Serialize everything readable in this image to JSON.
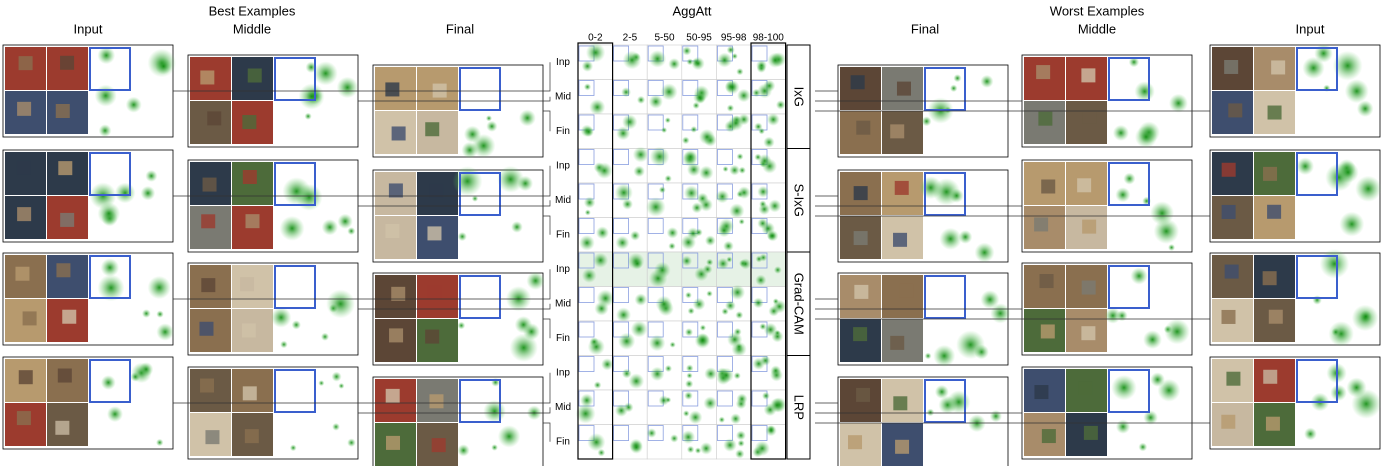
{
  "best": {
    "input": "Input",
    "group": "Best Examples",
    "middle": "Middle",
    "final": "Final"
  },
  "aggatt": {
    "title": "AggAtt",
    "bins": [
      "0-2",
      "2-5",
      "5-50",
      "50-95",
      "95-98",
      "98-100"
    ]
  },
  "worst": {
    "final": "Final",
    "group": "Worst Examples",
    "middle": "Middle",
    "input": "Input"
  },
  "methods": [
    {
      "name": "IxG",
      "layers": [
        "Inp",
        "Mid",
        "Fin"
      ]
    },
    {
      "name": "S-IxG",
      "layers": [
        "Inp",
        "Mid",
        "Fin"
      ]
    },
    {
      "name": "Grad-CAM",
      "layers": [
        "Inp",
        "Mid",
        "Fin"
      ]
    },
    {
      "name": "LRP",
      "layers": [
        "Inp",
        "Mid",
        "Fin"
      ]
    }
  ]
}
